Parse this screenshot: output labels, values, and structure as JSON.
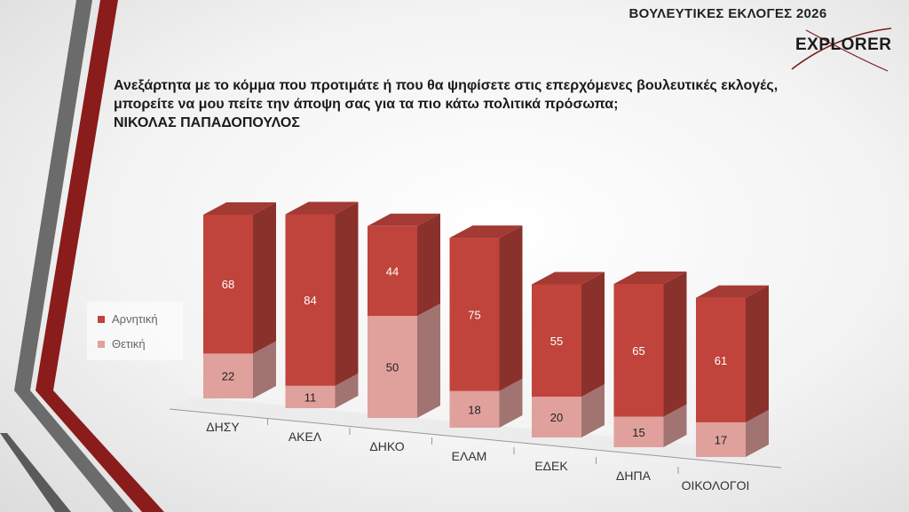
{
  "header": {
    "title": "ΒΟΥΛΕΥΤΙΚΕΣ ΕΚΛΟΓΕΣ 2026",
    "logo_text": "EXPLORER"
  },
  "question": {
    "line1": "Ανεξάρτητα με το κόμμα που προτιμάτε ή που θα ψηφίσετε στις επερχόμενες βουλευτικές εκλογές,",
    "line2": "μπορείτε να μου πείτε την άποψη σας για τα πιο κάτω πολιτικά πρόσωπα;",
    "line3": "ΝΙΚΟΛΑΣ ΠΑΠΑΔΟΠΟΥΛΟΣ"
  },
  "legend": {
    "negative": "Αρνητική",
    "positive": "Θετική"
  },
  "colors": {
    "negative": "#c0443c",
    "positive": "#e0a19d"
  },
  "chart_data": {
    "type": "bar",
    "stacked": true,
    "style": "3d-stacked-column",
    "categories": [
      "ΔΗΣΥ",
      "ΑΚΕΛ",
      "ΔΗΚΟ",
      "ΕΛΑΜ",
      "ΕΔΕΚ",
      "ΔΗΠΑ",
      "ΟΙΚΟΛΟΓΟΙ"
    ],
    "series": [
      {
        "name": "Θετική",
        "values": [
          22,
          11,
          50,
          18,
          20,
          15,
          17
        ]
      },
      {
        "name": "Αρνητική",
        "values": [
          68,
          84,
          44,
          75,
          55,
          65,
          61
        ]
      }
    ],
    "legend_position": "left",
    "grid": false
  }
}
